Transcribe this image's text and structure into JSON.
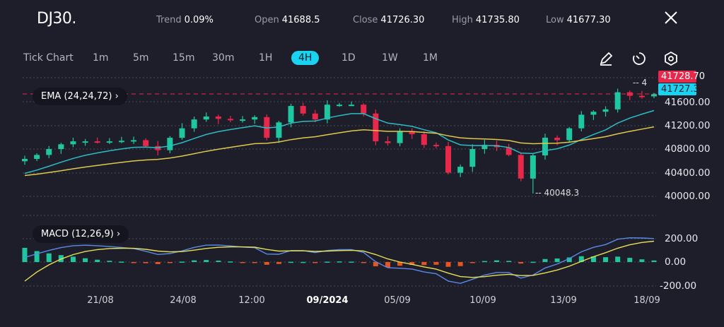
{
  "header": {
    "symbol": "DJ30.",
    "stats": [
      {
        "label": "Trend",
        "value": "0.09%"
      },
      {
        "label": "Open",
        "value": "41688.5"
      },
      {
        "label": "Close",
        "value": "41726.30"
      },
      {
        "label": "High",
        "value": "41735.80"
      },
      {
        "label": "Low",
        "value": "41677.30"
      }
    ],
    "close_icon": "close-icon"
  },
  "toolbar": {
    "timeframes": [
      "Tick Chart",
      "1m",
      "5m",
      "15m",
      "30m",
      "1H",
      "4H",
      "1D",
      "1W",
      "1M"
    ],
    "active": "4H",
    "tools": [
      "pencil-icon",
      "timer-icon",
      "settings-icon"
    ]
  },
  "indicators": {
    "ema": "EMA (24,24,72)",
    "macd": "MACD (12,26,9)"
  },
  "colors": {
    "up": "#1fc7a0",
    "down": "#e8284a",
    "ema_fast": "#2bbcc6",
    "ema_slow": "#e0c84a",
    "macd_line": "#5a8ae8",
    "signal_line": "#e6e055",
    "hist_pos": "#1fc7a0",
    "hist_neg": "#e8541e",
    "accent": "#19d3f0"
  },
  "chart_data": {
    "type": "candlestick",
    "price_axis": {
      "ticks": [
        "41600.00",
        "41200.00",
        "40800.00",
        "40400.00",
        "40000.00"
      ],
      "range": [
        39900,
        41900
      ]
    },
    "macd_axis": {
      "ticks": [
        "200.00",
        "0.00",
        "-200.00"
      ]
    },
    "x_ticks": [
      "21/08",
      "24/08",
      "12:00",
      "09/2024",
      "05/09",
      "10/09",
      "13/09",
      "18/09"
    ],
    "bold_x_tick": "09/2024",
    "last_price_bid": "41728.70",
    "last_price_ask": "41727.30",
    "low_marker": "40048.3",
    "high_marker_partial": "4",
    "closes": [
      40633,
      40700,
      40800,
      40880,
      40930,
      40930,
      40920,
      40930,
      40940,
      40950,
      40850,
      40780,
      40990,
      41150,
      41300,
      41350,
      41310,
      41290,
      41300,
      41340,
      40990,
      41250,
      41528,
      41400,
      41300,
      41550,
      41550,
      41550,
      41400,
      40930,
      40900,
      41100,
      41050,
      40870,
      40850,
      40400,
      40500,
      40800,
      40870,
      40830,
      40700,
      40300,
      40692,
      40991,
      40950,
      41150,
      41380,
      41430,
      41470,
      41760,
      41700,
      41690,
      41727
    ]
  }
}
